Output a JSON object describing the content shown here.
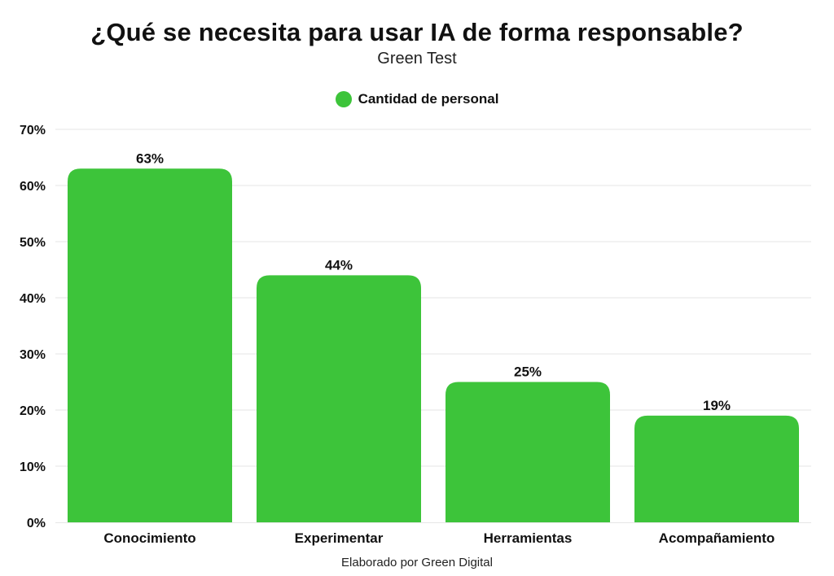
{
  "chart_data": {
    "type": "bar",
    "title": "¿Qué se necesita para usar IA de forma responsable?",
    "subtitle": "Green Test",
    "categories": [
      "Conocimiento",
      "Experimentar",
      "Herramientas",
      "Acompañamiento"
    ],
    "series": [
      {
        "name": "Cantidad de personal",
        "values": [
          63,
          44,
          25,
          19
        ],
        "data_labels": [
          "63%",
          "44%",
          "25%",
          "19%"
        ],
        "color": "#3dc43a"
      }
    ],
    "ylim": [
      0,
      70
    ],
    "y_ticks": [
      0,
      10,
      20,
      30,
      40,
      50,
      60,
      70
    ],
    "y_tick_labels": [
      "0%",
      "10%",
      "20%",
      "30%",
      "40%",
      "50%",
      "60%",
      "70%"
    ],
    "xlabel": "",
    "ylabel": "",
    "grid": true,
    "legend_position": "top-center",
    "footer": "Elaborado por Green Digital"
  }
}
